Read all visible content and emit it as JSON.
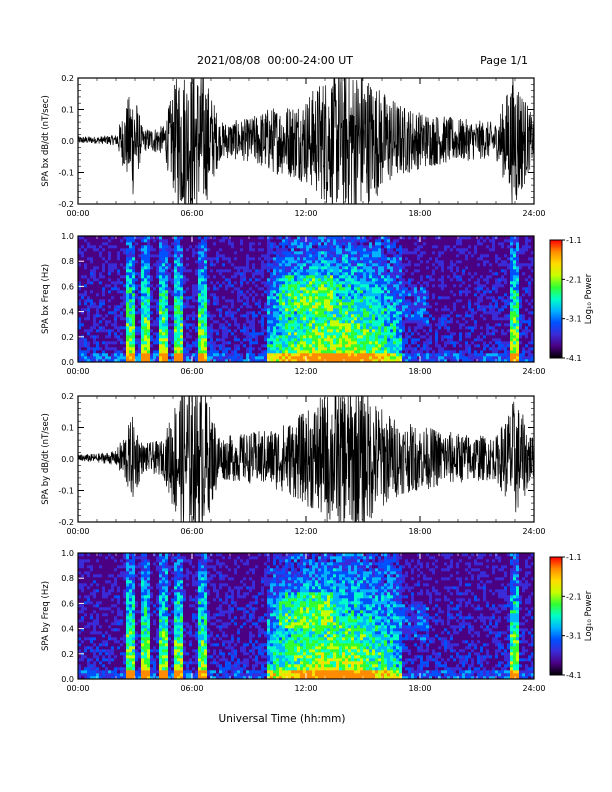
{
  "header": {
    "date_title": "2021/08/08  00:00-24:00 UT",
    "page_label": "Page 1/1"
  },
  "x_axis_label": "Universal Time (hh:mm)",
  "chart_data": [
    {
      "type": "line",
      "title": "",
      "ylabel": "SPA bx dB/dt (nT/sec)",
      "x_range_hours": [
        0,
        24
      ],
      "x_tick_labels": [
        "00:00",
        "06:00",
        "12:00",
        "18:00",
        "24:00"
      ],
      "ylim": [
        -0.2,
        0.2
      ],
      "y_tick_labels": [
        "0.2",
        "0.1",
        "0.0",
        "-0.1",
        "-0.2"
      ],
      "color": "#000000",
      "envelope": [
        {
          "t": 0.0,
          "amp": 0.01
        },
        {
          "t": 1.0,
          "amp": 0.01
        },
        {
          "t": 2.0,
          "amp": 0.015
        },
        {
          "t": 2.9,
          "amp": 0.16
        },
        {
          "t": 3.4,
          "amp": 0.03
        },
        {
          "t": 4.5,
          "amp": 0.04
        },
        {
          "t": 5.3,
          "amp": 0.2
        },
        {
          "t": 6.6,
          "amp": 0.2
        },
        {
          "t": 7.5,
          "amp": 0.05
        },
        {
          "t": 9.0,
          "amp": 0.06
        },
        {
          "t": 10.0,
          "amp": 0.09
        },
        {
          "t": 11.0,
          "amp": 0.1
        },
        {
          "t": 12.0,
          "amp": 0.12
        },
        {
          "t": 13.0,
          "amp": 0.18
        },
        {
          "t": 14.0,
          "amp": 0.2
        },
        {
          "t": 15.0,
          "amp": 0.2
        },
        {
          "t": 16.0,
          "amp": 0.14
        },
        {
          "t": 17.0,
          "amp": 0.1
        },
        {
          "t": 18.0,
          "amp": 0.08
        },
        {
          "t": 20.0,
          "amp": 0.06
        },
        {
          "t": 22.0,
          "amp": 0.05
        },
        {
          "t": 23.0,
          "amp": 0.2
        },
        {
          "t": 24.0,
          "amp": 0.05
        }
      ]
    },
    {
      "type": "heatmap",
      "title": "",
      "ylabel": "SPA bx Freq (Hz)",
      "x_range_hours": [
        0,
        24
      ],
      "x_tick_labels": [
        "00:00",
        "06:00",
        "12:00",
        "18:00",
        "24:00"
      ],
      "ylim": [
        0.0,
        1.0
      ],
      "y_tick_labels": [
        "1.0",
        "0.8",
        "0.6",
        "0.4",
        "0.2",
        "0.0"
      ],
      "colorbar_label": "Log₁₀ Power",
      "colorbar_range": [
        -4.1,
        -1.1
      ],
      "colorbar_tick_labels": [
        "-1.1",
        "-2.1",
        "-3.1",
        "-4.1"
      ],
      "colormap": [
        "#000000",
        "#4b0082",
        "#3a2bd8",
        "#0050ff",
        "#00b4ff",
        "#00ffc8",
        "#32ff32",
        "#c8ff00",
        "#ffdc00",
        "#ff8c00",
        "#ff0000"
      ]
    },
    {
      "type": "line",
      "title": "",
      "ylabel": "SPA by dB/dt (nT/sec)",
      "x_range_hours": [
        0,
        24
      ],
      "x_tick_labels": [
        "00:00",
        "06:00",
        "12:00",
        "18:00",
        "24:00"
      ],
      "ylim": [
        -0.2,
        0.2
      ],
      "y_tick_labels": [
        "0.2",
        "0.1",
        "0.0",
        "-0.1",
        "-0.2"
      ],
      "color": "#000000",
      "envelope": [
        {
          "t": 0.0,
          "amp": 0.01
        },
        {
          "t": 1.0,
          "amp": 0.012
        },
        {
          "t": 2.0,
          "amp": 0.02
        },
        {
          "t": 2.9,
          "amp": 0.12
        },
        {
          "t": 3.4,
          "amp": 0.04
        },
        {
          "t": 4.5,
          "amp": 0.05
        },
        {
          "t": 5.3,
          "amp": 0.2
        },
        {
          "t": 6.6,
          "amp": 0.2
        },
        {
          "t": 7.5,
          "amp": 0.06
        },
        {
          "t": 9.0,
          "amp": 0.07
        },
        {
          "t": 10.0,
          "amp": 0.08
        },
        {
          "t": 11.0,
          "amp": 0.1
        },
        {
          "t": 12.0,
          "amp": 0.13
        },
        {
          "t": 13.0,
          "amp": 0.18
        },
        {
          "t": 14.0,
          "amp": 0.2
        },
        {
          "t": 15.0,
          "amp": 0.2
        },
        {
          "t": 16.0,
          "amp": 0.14
        },
        {
          "t": 17.0,
          "amp": 0.1
        },
        {
          "t": 18.0,
          "amp": 0.09
        },
        {
          "t": 20.0,
          "amp": 0.07
        },
        {
          "t": 22.0,
          "amp": 0.06
        },
        {
          "t": 23.0,
          "amp": 0.17
        },
        {
          "t": 24.0,
          "amp": 0.05
        }
      ]
    },
    {
      "type": "heatmap",
      "title": "",
      "ylabel": "SPA by Freq (Hz)",
      "x_range_hours": [
        0,
        24
      ],
      "x_tick_labels": [
        "00:00",
        "06:00",
        "12:00",
        "18:00",
        "24:00"
      ],
      "ylim": [
        0.0,
        1.0
      ],
      "y_tick_labels": [
        "1.0",
        "0.8",
        "0.6",
        "0.4",
        "0.2",
        "0.0"
      ],
      "colorbar_label": "Log₁₀ Power",
      "colorbar_range": [
        -4.1,
        -1.1
      ],
      "colorbar_tick_labels": [
        "-1.1",
        "-2.1",
        "-3.1",
        "-4.1"
      ],
      "colormap": [
        "#000000",
        "#4b0082",
        "#3a2bd8",
        "#0050ff",
        "#00b4ff",
        "#00ffc8",
        "#32ff32",
        "#c8ff00",
        "#ffdc00",
        "#ff8c00",
        "#ff0000"
      ]
    }
  ]
}
